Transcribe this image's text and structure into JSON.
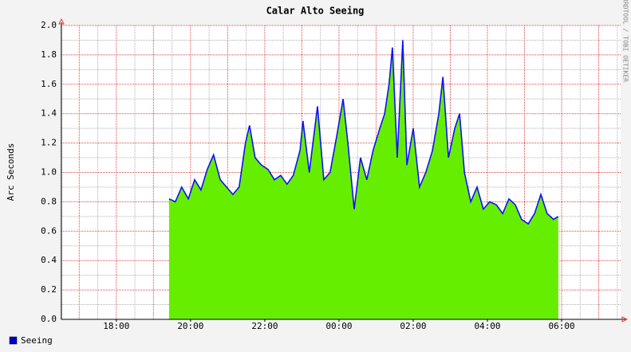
{
  "chart_data": {
    "type": "area",
    "title": "Calar Alto Seeing",
    "y_label": "Arc Seconds",
    "watermark": "RRDTOOL / TOBI OETIKER",
    "x": [
      19.42,
      19.59,
      19.76,
      19.94,
      20.11,
      20.28,
      20.45,
      20.62,
      20.8,
      20.97,
      21.14,
      21.31,
      21.48,
      21.59,
      21.74,
      21.91,
      22.09,
      22.26,
      22.43,
      22.6,
      22.77,
      22.95,
      23.03,
      23.2,
      23.42,
      23.59,
      23.76,
      23.94,
      24.11,
      24.24,
      24.41,
      24.58,
      24.75,
      24.92,
      25.1,
      25.23,
      25.35,
      25.44,
      25.57,
      25.72,
      25.83,
      26.0,
      26.17,
      26.34,
      26.52,
      26.69,
      26.8,
      26.95,
      27.12,
      27.25,
      27.38,
      27.55,
      27.72,
      27.89,
      28.06,
      28.24,
      28.41,
      28.58,
      28.75,
      28.92,
      29.1,
      29.27,
      29.44,
      29.61,
      29.78,
      29.91
    ],
    "series": [
      {
        "name": "Seeing",
        "color": "#1010ff",
        "fill": "#66ee00",
        "values": [
          0.82,
          0.8,
          0.9,
          0.82,
          0.95,
          0.88,
          1.02,
          1.12,
          0.95,
          0.9,
          0.85,
          0.9,
          1.2,
          1.32,
          1.1,
          1.05,
          1.02,
          0.95,
          0.98,
          0.92,
          0.98,
          1.15,
          1.35,
          1.0,
          1.45,
          0.95,
          1.0,
          1.25,
          1.5,
          1.2,
          0.75,
          1.1,
          0.95,
          1.15,
          1.3,
          1.4,
          1.6,
          1.85,
          1.1,
          1.9,
          1.05,
          1.3,
          0.9,
          1.0,
          1.15,
          1.4,
          1.65,
          1.1,
          1.3,
          1.4,
          1.0,
          0.8,
          0.9,
          0.75,
          0.8,
          0.78,
          0.72,
          0.82,
          0.78,
          0.68,
          0.65,
          0.72,
          0.85,
          0.72,
          0.68,
          0.7
        ]
      }
    ],
    "legend_swatch": "#0000cc",
    "xlim": [
      16.52,
      31.59
    ],
    "ylim": [
      0,
      2
    ],
    "xticks": [
      {
        "value": 18,
        "label": "18:00"
      },
      {
        "value": 20,
        "label": "20:00"
      },
      {
        "value": 22,
        "label": "22:00"
      },
      {
        "value": 24,
        "label": "00:00"
      },
      {
        "value": 26,
        "label": "02:00"
      },
      {
        "value": 28,
        "label": "04:00"
      },
      {
        "value": 30,
        "label": "06:00"
      }
    ],
    "yticks": [
      {
        "value": 0,
        "label": "0.0"
      },
      0.2,
      0.4,
      0.6,
      0.8,
      {
        "value": 1,
        "label": "1.0"
      },
      1.2,
      1.4,
      1.6,
      1.8,
      {
        "value": 2,
        "label": "2.0"
      }
    ],
    "x_major_grid": [
      17,
      18,
      19,
      20,
      21,
      22,
      23,
      24,
      25,
      26,
      27,
      28,
      29,
      30,
      31
    ],
    "x_minor_grid": [
      16.5,
      17.5,
      18.5,
      19.5,
      20.5,
      21.5,
      22.5,
      23.5,
      24.5,
      25.5,
      26.5,
      27.5,
      28.5,
      29.5,
      30.5,
      31.5
    ],
    "y_minor_grid": [
      0.1,
      0.3,
      0.5,
      0.7,
      0.9,
      1.1,
      1.3,
      1.5,
      1.7,
      1.9
    ],
    "major_grid_color": "#e04040",
    "minor_grid_color": "#b0b0b0"
  }
}
